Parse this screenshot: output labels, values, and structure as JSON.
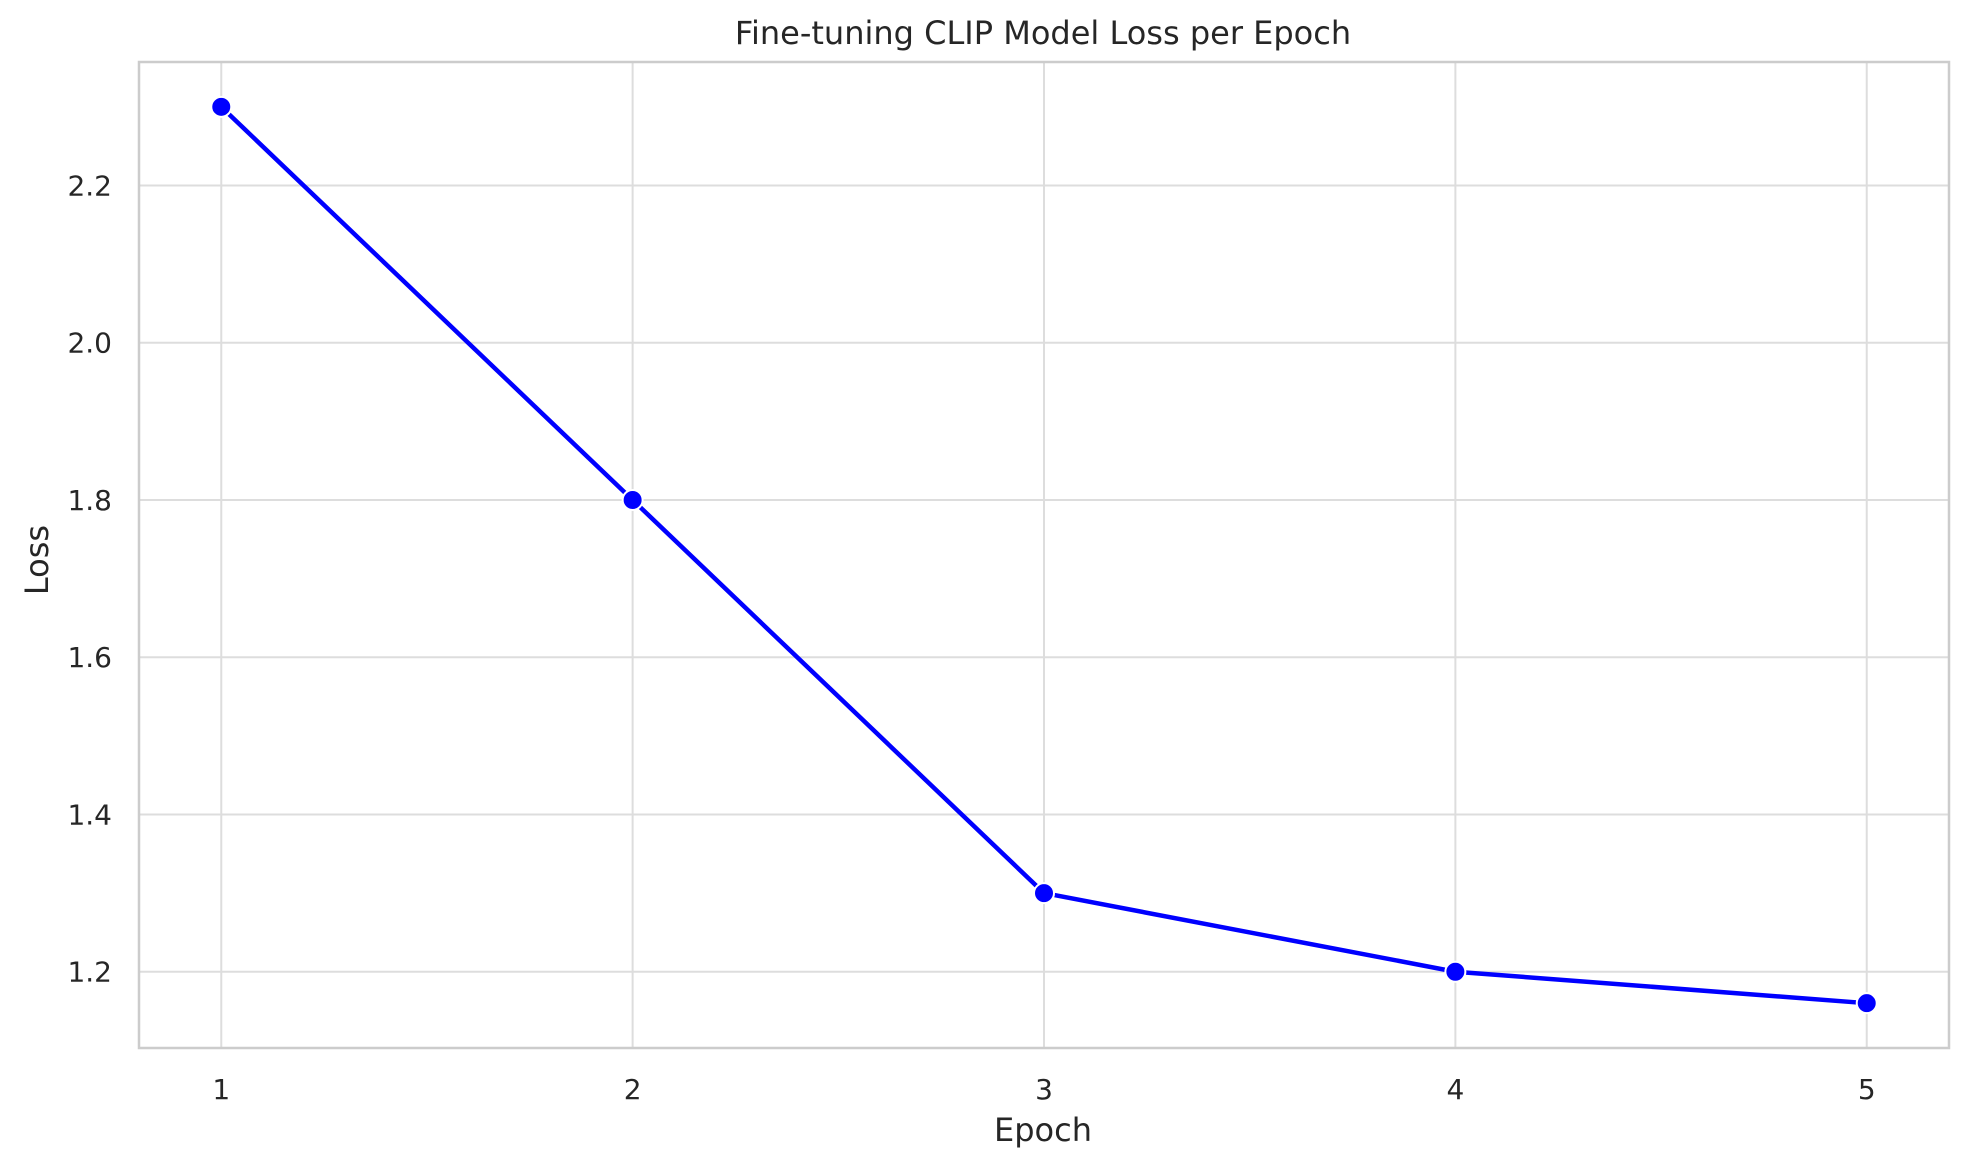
{
  "chart_data": {
    "type": "line",
    "title": "Fine-tuning CLIP Model Loss per Epoch",
    "xlabel": "Epoch",
    "ylabel": "Loss",
    "x": [
      1,
      2,
      3,
      4,
      5
    ],
    "series": [
      {
        "values": [
          2.3,
          1.8,
          1.3,
          1.2,
          1.16
        ],
        "color": "#0000ff"
      }
    ],
    "xticks": [
      "1",
      "2",
      "3",
      "4",
      "5"
    ],
    "yticks": [
      "1.2",
      "1.4",
      "1.6",
      "1.8",
      "2.0",
      "2.2"
    ],
    "xlim": [
      0.8,
      5.2
    ],
    "ylim": [
      1.103,
      2.357
    ],
    "grid": true,
    "marker_color": "#0000ff",
    "marker_edge": "#ffffff",
    "grid_color": "#dddddd",
    "spine_color": "#cccccc"
  }
}
